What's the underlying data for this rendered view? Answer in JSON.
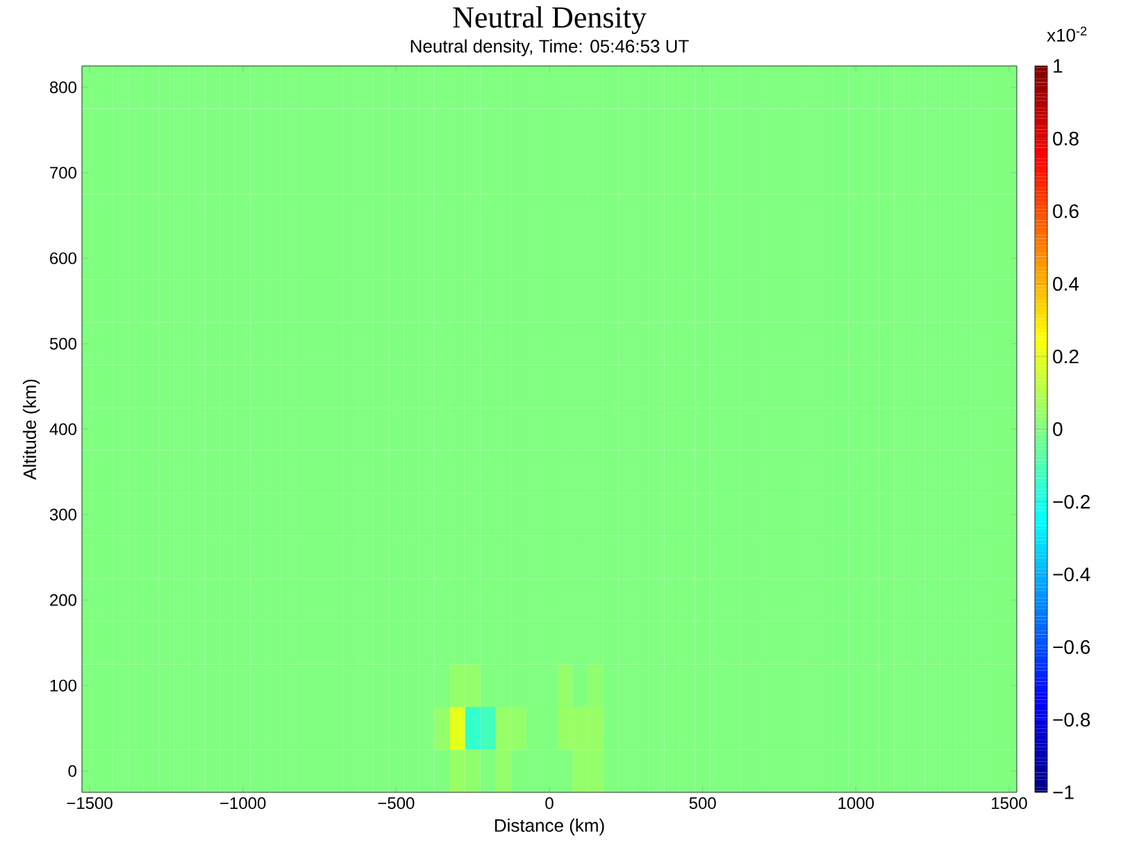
{
  "chart_data": {
    "type": "heatmap",
    "title": "Neutral Density",
    "subtitle": "Neutral density, Time: 05:46:53 UT",
    "xlabel": "Distance (km)",
    "ylabel": "Altitude (km)",
    "clabel": "x10$^{-2}$",
    "categories": [
      "−1500",
      null,
      null,
      null,
      null,
      null,
      null,
      null,
      null,
      null,
      "−1000",
      null,
      null,
      null,
      null,
      null,
      null,
      null,
      null,
      null,
      "−500",
      null,
      null,
      null,
      null,
      null,
      null,
      null,
      null,
      null,
      "0",
      null,
      null,
      null,
      null,
      null,
      null,
      null,
      null,
      null,
      "500",
      null,
      null,
      null,
      null,
      null,
      null,
      null,
      null,
      null,
      "1000",
      null,
      null,
      null,
      null,
      null,
      null,
      null,
      null,
      null,
      "1500"
    ],
    "y_categories": [
      "800",
      null,
      "700",
      null,
      "600",
      null,
      "500",
      null,
      "400",
      null,
      "300",
      null,
      "200",
      null,
      "100",
      null,
      "0"
    ],
    "cells": [
      [
        0,
        0,
        0,
        0,
        0,
        0,
        0,
        0,
        0,
        0,
        0,
        0,
        0,
        0,
        0,
        0,
        0,
        0,
        0,
        0,
        0,
        0,
        0,
        0,
        0,
        0,
        0,
        0,
        0,
        0,
        0,
        0,
        0,
        0,
        0,
        0,
        0,
        0,
        0,
        0,
        0,
        0,
        0,
        0,
        0,
        0,
        0,
        0,
        0,
        0,
        0,
        0,
        0,
        0,
        0,
        0,
        0,
        0,
        0,
        0,
        0
      ],
      [
        0,
        0,
        0,
        0,
        0,
        0,
        0,
        0,
        0,
        0,
        0,
        0,
        0,
        0,
        0,
        0,
        0,
        0,
        0,
        0,
        0,
        0,
        0,
        0,
        0,
        0,
        0,
        0,
        0,
        0,
        0,
        0,
        0,
        0,
        0,
        0,
        0,
        0,
        0,
        0,
        0,
        0,
        0,
        0,
        0,
        0,
        0,
        0,
        0,
        0,
        0,
        0,
        0,
        0,
        0,
        0,
        0,
        0,
        0,
        0,
        0
      ],
      [
        0,
        0,
        0,
        0,
        0,
        0,
        0,
        0,
        0,
        0,
        0,
        0,
        0,
        0,
        0,
        0,
        0,
        0,
        0,
        0,
        0,
        0,
        0,
        0,
        0,
        0,
        0,
        0,
        0,
        0,
        0,
        0,
        0,
        0,
        0,
        0,
        0,
        0,
        0,
        0,
        0,
        0,
        0,
        0,
        0,
        0,
        0,
        0,
        0,
        0,
        0,
        0,
        0,
        0,
        0,
        0,
        0,
        0,
        0,
        0,
        0
      ],
      [
        0,
        0,
        0,
        0,
        0,
        0,
        0,
        0,
        0,
        0,
        0,
        0,
        0,
        0,
        0,
        0,
        0,
        0,
        0,
        0,
        0,
        0,
        0,
        0,
        0,
        0,
        0,
        0,
        0,
        0,
        0,
        0,
        0,
        0,
        0,
        0,
        0,
        0,
        0,
        0,
        0,
        0,
        0,
        0,
        0,
        0,
        0,
        0,
        0,
        0,
        0,
        0,
        0,
        0,
        0,
        0,
        0,
        0,
        0,
        0,
        0
      ],
      [
        0,
        0,
        0,
        0,
        0,
        0,
        0,
        0,
        0,
        0,
        0,
        0,
        0,
        0,
        0,
        0,
        0,
        0,
        0,
        0,
        0,
        0,
        0,
        0,
        0,
        0,
        0,
        0,
        0,
        0,
        0,
        0,
        0,
        0,
        0,
        0,
        0,
        0,
        0,
        0,
        0,
        0,
        0,
        0,
        0,
        0,
        0,
        0,
        0,
        0,
        0,
        0,
        0,
        0,
        0,
        0,
        0,
        0,
        0,
        0,
        0
      ],
      [
        0,
        0,
        0,
        0,
        0,
        0,
        0,
        0,
        0,
        0,
        0,
        0,
        0,
        0,
        0,
        0,
        0,
        0,
        0,
        0,
        0,
        0,
        0,
        0,
        0,
        0,
        0,
        0,
        0,
        0,
        0,
        0,
        0,
        0,
        0,
        0,
        0,
        0,
        0,
        0,
        0,
        0,
        0,
        0,
        0,
        0,
        0,
        0,
        0,
        0,
        0,
        0,
        0,
        0,
        0,
        0,
        0,
        0,
        0,
        0,
        0
      ],
      [
        0,
        0,
        0,
        0,
        0,
        0,
        0,
        0,
        0,
        0,
        0,
        0,
        0,
        0,
        0,
        0,
        0,
        0,
        0,
        0,
        0,
        0,
        0,
        0,
        0,
        0,
        0,
        0,
        0,
        0,
        0,
        0,
        0,
        0,
        0,
        0,
        0,
        0,
        0,
        0,
        0,
        0,
        0,
        0,
        0,
        0,
        0,
        0,
        0,
        0,
        0,
        0,
        0,
        0,
        0,
        0,
        0,
        0,
        0,
        0,
        0
      ],
      [
        0,
        0,
        0,
        0,
        0,
        0,
        0,
        0,
        0,
        0,
        0,
        0,
        0,
        0,
        0,
        0,
        0,
        0,
        0,
        0,
        0,
        0,
        0,
        0,
        0,
        0,
        0,
        0,
        0,
        0,
        0,
        0,
        0,
        0,
        0,
        0,
        0,
        0,
        0,
        0,
        0,
        0,
        0,
        0,
        0,
        0,
        0,
        0,
        0,
        0,
        0,
        0,
        0,
        0,
        0,
        0,
        0,
        0,
        0,
        0,
        0
      ],
      [
        0,
        0,
        0,
        0,
        0,
        0,
        0,
        0,
        0,
        0,
        0,
        0,
        0,
        0,
        0,
        0,
        0,
        0,
        0,
        0,
        0,
        0,
        0,
        0,
        0,
        0,
        0,
        0,
        0,
        0,
        0,
        0,
        0,
        0,
        0,
        0,
        0,
        0,
        0,
        0,
        0,
        0,
        0,
        0,
        0,
        0,
        0,
        0,
        0,
        0,
        0,
        0,
        0,
        0,
        0,
        0,
        0,
        0,
        0,
        0,
        0
      ],
      [
        0,
        0,
        0,
        0,
        0,
        0,
        0,
        0,
        0,
        0,
        0,
        0,
        0,
        0,
        0,
        0,
        0,
        0,
        0,
        0,
        0,
        0,
        0,
        0,
        0,
        0,
        0,
        0,
        0,
        0,
        0,
        0,
        0,
        0,
        0,
        0,
        0,
        0,
        0,
        0,
        0,
        0,
        0,
        0,
        0,
        0,
        0,
        0,
        0,
        0,
        0,
        0,
        0,
        0,
        0,
        0,
        0,
        0,
        0,
        0,
        0
      ],
      [
        0,
        0,
        0,
        0,
        0,
        0,
        0,
        0,
        0,
        0,
        0,
        0,
        0,
        0,
        0,
        0,
        0,
        0,
        0,
        0,
        0,
        0,
        0,
        0,
        0,
        0,
        0,
        0,
        0,
        0,
        0,
        0,
        0,
        0,
        0,
        0,
        0,
        0,
        0,
        0,
        0,
        0,
        0,
        0,
        0,
        0,
        0,
        0,
        0,
        0,
        0,
        0,
        0,
        0,
        0,
        0,
        0,
        0,
        0,
        0,
        0
      ],
      [
        0,
        0,
        0,
        0,
        0,
        0,
        0,
        0,
        0,
        0,
        0,
        0,
        0,
        0,
        0,
        0,
        0,
        0,
        0,
        0,
        0,
        0,
        0,
        0,
        0,
        0,
        0,
        0,
        0,
        0,
        0,
        0,
        0,
        0,
        0,
        0,
        0,
        0,
        0,
        0,
        0,
        0,
        0,
        0,
        0,
        0,
        0,
        0,
        0,
        0,
        0,
        0,
        0,
        0,
        0,
        0,
        0,
        0,
        0,
        0,
        0
      ],
      [
        0,
        0,
        0,
        0,
        0,
        0,
        0,
        0,
        0,
        0,
        0,
        0,
        0,
        0,
        0,
        0,
        0,
        0,
        0,
        0,
        0,
        0,
        0,
        0,
        0,
        0,
        0,
        0,
        0,
        0,
        0,
        0,
        0,
        0,
        0,
        0,
        0,
        0,
        0,
        0,
        0,
        0,
        0,
        0,
        0,
        0,
        0,
        0,
        0,
        0,
        0,
        0,
        0,
        0,
        0,
        0,
        0,
        0,
        0,
        0,
        0
      ],
      [
        0,
        0,
        0,
        0,
        0,
        0,
        0,
        0,
        0,
        0,
        0,
        0,
        0,
        0,
        0,
        0,
        0,
        0,
        0,
        0,
        0,
        0,
        0,
        0,
        0,
        0,
        0,
        0,
        0,
        0,
        0,
        0,
        0,
        0,
        0,
        0,
        0,
        0,
        0,
        0,
        0,
        0,
        0,
        0,
        0,
        0,
        0,
        0,
        0,
        0,
        0,
        0,
        0,
        0,
        0,
        0,
        0,
        0,
        0,
        0,
        0
      ],
      [
        0,
        0,
        0,
        0,
        0,
        0,
        0,
        0,
        0,
        0,
        0,
        0,
        0,
        0,
        0,
        0,
        0,
        0,
        0,
        0,
        0,
        0,
        0,
        0,
        0.04,
        0.04,
        0,
        0,
        0,
        0,
        0,
        0.04,
        0,
        0.03,
        0,
        0,
        0,
        0,
        0,
        0,
        0,
        0,
        0,
        0,
        0,
        0,
        0,
        0,
        0,
        0,
        0,
        0,
        0,
        0,
        0,
        0,
        0,
        0,
        0,
        0,
        0
      ],
      [
        0,
        0,
        0,
        0,
        0,
        0,
        0,
        0,
        0,
        0,
        0,
        0,
        0,
        0,
        0,
        0,
        0,
        0,
        0,
        0,
        0,
        0,
        0,
        0.04,
        0.2,
        -0.15,
        -0.12,
        0.05,
        0.04,
        0,
        0,
        0.05,
        0.05,
        0.05,
        0,
        0,
        0,
        0,
        0,
        0,
        0,
        0,
        0,
        0,
        0,
        0,
        0,
        0,
        0,
        0,
        0,
        0,
        0,
        0,
        0,
        0,
        0,
        0,
        0,
        0,
        0
      ],
      [
        0,
        0,
        0,
        0,
        0,
        0,
        0,
        0,
        0,
        0,
        0,
        0,
        0,
        0,
        0,
        0,
        0,
        0,
        0,
        0,
        0,
        0,
        0,
        0,
        0.05,
        0.03,
        0,
        0.04,
        0,
        0,
        0,
        0,
        0.04,
        0.04,
        0,
        0,
        0,
        0,
        0,
        0,
        0,
        0,
        0,
        0,
        0,
        0,
        0,
        0,
        0,
        0,
        0,
        0,
        0,
        0,
        0,
        0,
        0,
        0,
        0,
        0,
        0
      ]
    ],
    "clim": [
      -1,
      1
    ],
    "cticks": [
      {
        "value": -1,
        "label": "−1"
      },
      {
        "value": -0.8,
        "label": "−0.8"
      },
      {
        "value": -0.6,
        "label": "−0.6"
      },
      {
        "value": -0.4,
        "label": "−0.4"
      },
      {
        "value": -0.2,
        "label": "−0.2"
      },
      0,
      0.2,
      0.4,
      0.6,
      0.8,
      1
    ]
  }
}
